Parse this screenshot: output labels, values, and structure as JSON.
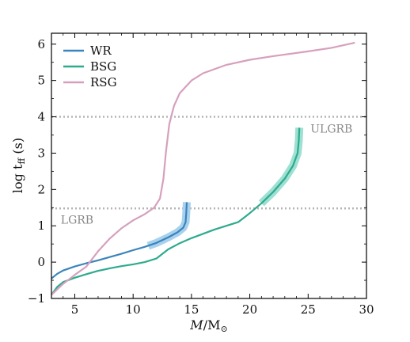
{
  "chart_data": {
    "type": "line",
    "xlabel_main": "M",
    "xlabel_unit": "/M",
    "xlabel_sun": "⊙",
    "ylabel_main": "log t",
    "ylabel_sub": "ff",
    "ylabel_unit": " (s)",
    "xlim": [
      3,
      30
    ],
    "ylim": [
      -1,
      6.3
    ],
    "xticks": [
      5,
      10,
      15,
      20,
      25,
      30
    ],
    "yticks": [
      -1,
      0,
      1,
      2,
      3,
      4,
      5,
      6
    ],
    "grid": false,
    "legend_position": "top-left",
    "series": [
      {
        "name": "WR",
        "color": "#3b84bc",
        "points": [
          [
            3,
            -0.45
          ],
          [
            3.5,
            -0.32
          ],
          [
            4,
            -0.23
          ],
          [
            5,
            -0.12
          ],
          [
            6,
            -0.03
          ],
          [
            7,
            0.05
          ],
          [
            8,
            0.14
          ],
          [
            9,
            0.23
          ],
          [
            10,
            0.33
          ],
          [
            11,
            0.42
          ],
          [
            12,
            0.53
          ],
          [
            13,
            0.68
          ],
          [
            13.8,
            0.82
          ],
          [
            14.3,
            0.95
          ],
          [
            14.5,
            1.1
          ],
          [
            14.55,
            1.35
          ],
          [
            14.6,
            1.65
          ]
        ]
      },
      {
        "name": "BSG",
        "color": "#2eaa8e",
        "points": [
          [
            3,
            -0.9
          ],
          [
            3.5,
            -0.68
          ],
          [
            4,
            -0.55
          ],
          [
            5,
            -0.43
          ],
          [
            6,
            -0.33
          ],
          [
            7,
            -0.24
          ],
          [
            8,
            -0.17
          ],
          [
            9,
            -0.11
          ],
          [
            10,
            -0.06
          ],
          [
            11,
            0.0
          ],
          [
            12,
            0.1
          ],
          [
            13,
            0.35
          ],
          [
            14,
            0.52
          ],
          [
            15,
            0.66
          ],
          [
            16,
            0.78
          ],
          [
            17,
            0.9
          ],
          [
            18,
            1.0
          ],
          [
            19,
            1.1
          ],
          [
            20,
            1.35
          ],
          [
            21,
            1.62
          ],
          [
            22,
            1.93
          ],
          [
            23,
            2.3
          ],
          [
            23.7,
            2.65
          ],
          [
            24.1,
            3.0
          ],
          [
            24.2,
            3.35
          ],
          [
            24.25,
            3.7
          ]
        ]
      },
      {
        "name": "RSG",
        "color": "#d6a0bd",
        "points": [
          [
            3,
            -0.9
          ],
          [
            4,
            -0.6
          ],
          [
            5,
            -0.35
          ],
          [
            6,
            -0.12
          ],
          [
            7,
            0.3
          ],
          [
            8,
            0.65
          ],
          [
            9,
            0.93
          ],
          [
            10,
            1.15
          ],
          [
            11,
            1.32
          ],
          [
            11.8,
            1.5
          ],
          [
            12.3,
            1.75
          ],
          [
            12.6,
            2.3
          ],
          [
            12.8,
            3.0
          ],
          [
            13.1,
            3.8
          ],
          [
            13.5,
            4.3
          ],
          [
            14,
            4.65
          ],
          [
            15,
            5.0
          ],
          [
            16,
            5.2
          ],
          [
            18,
            5.43
          ],
          [
            20,
            5.57
          ],
          [
            22,
            5.67
          ],
          [
            25,
            5.8
          ],
          [
            27,
            5.9
          ],
          [
            29,
            6.04
          ]
        ]
      }
    ],
    "highlights": [
      {
        "series": "WR",
        "color": "#a8d1ee",
        "points": [
          [
            11.3,
            0.45
          ],
          [
            12,
            0.53
          ],
          [
            13,
            0.68
          ],
          [
            13.8,
            0.82
          ],
          [
            14.3,
            0.95
          ],
          [
            14.5,
            1.1
          ],
          [
            14.55,
            1.35
          ],
          [
            14.6,
            1.65
          ]
        ]
      },
      {
        "series": "BSG",
        "color": "#9ee0d2",
        "points": [
          [
            21,
            1.62
          ],
          [
            22,
            1.93
          ],
          [
            23,
            2.3
          ],
          [
            23.7,
            2.65
          ],
          [
            24.1,
            3.0
          ],
          [
            24.2,
            3.35
          ],
          [
            24.25,
            3.7
          ]
        ]
      }
    ],
    "hlines": [
      {
        "y": 1.48,
        "label": "LGRB"
      },
      {
        "y": 4.0,
        "label": "ULGRB"
      }
    ],
    "annotations": [
      {
        "text": "LGRB",
        "x": 3.8,
        "y": 1.06
      },
      {
        "text": "ULGRB",
        "x": 25.2,
        "y": 3.56
      }
    ]
  }
}
